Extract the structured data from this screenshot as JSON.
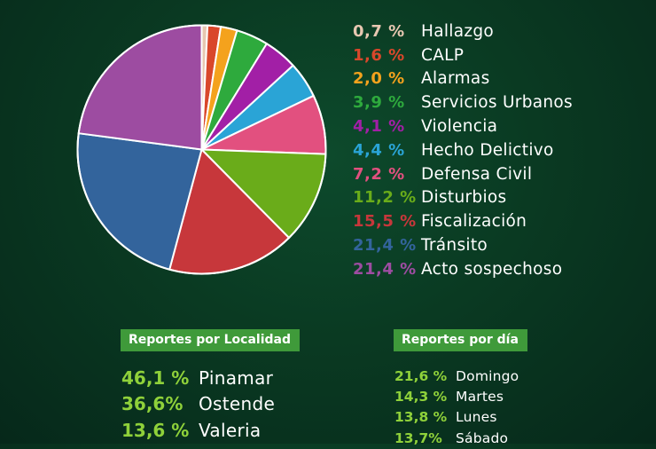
{
  "chart_data": {
    "type": "pie",
    "slices": [
      {
        "label": "Hallazgo",
        "pct_text": "0,7 %",
        "value": 0.7,
        "color": "#e7c7b1"
      },
      {
        "label": "CALP",
        "pct_text": "1,6 %",
        "value": 1.6,
        "color": "#d9472b"
      },
      {
        "label": "Alarmas",
        "pct_text": "2,0 %",
        "value": 2.0,
        "color": "#f4a21d"
      },
      {
        "label": "Servicios Urbanos",
        "pct_text": "3,9 %",
        "value": 3.9,
        "color": "#2eaa3d"
      },
      {
        "label": "Violencia",
        "pct_text": "4,1 %",
        "value": 4.1,
        "color": "#a21fa6"
      },
      {
        "label": "Hecho Delictivo",
        "pct_text": "4,4 %",
        "value": 4.4,
        "color": "#2aa4d6"
      },
      {
        "label": "Defensa Civil",
        "pct_text": "7,2 %",
        "value": 7.2,
        "color": "#e2507f"
      },
      {
        "label": "Disturbios",
        "pct_text": "11,2 %",
        "value": 11.2,
        "color": "#6aac1a"
      },
      {
        "label": "Fiscalización",
        "pct_text": "15,5 %",
        "value": 15.5,
        "color": "#c7373b"
      },
      {
        "label": "Tránsito",
        "pct_text": "21,4 %",
        "value": 21.4,
        "color": "#33649c"
      },
      {
        "label": "Acto sospechoso",
        "pct_text": "21,4 %",
        "value": 21.4,
        "color": "#9d4ca1"
      }
    ]
  },
  "localidad": {
    "header": "Reportes por Localidad",
    "items": [
      {
        "pct": "46,1 %",
        "name": "Pinamar"
      },
      {
        "pct": "36,6%",
        "name": "Ostende"
      },
      {
        "pct": "13,6 %",
        "name": "Valeria"
      }
    ]
  },
  "dia": {
    "header": "Reportes por día",
    "items": [
      {
        "pct": "21,6 %",
        "name": "Domingo"
      },
      {
        "pct": "14,3 %",
        "name": "Martes"
      },
      {
        "pct": "13,8 %",
        "name": "Lunes"
      },
      {
        "pct": "13,7%",
        "name": "Sábado"
      }
    ]
  }
}
